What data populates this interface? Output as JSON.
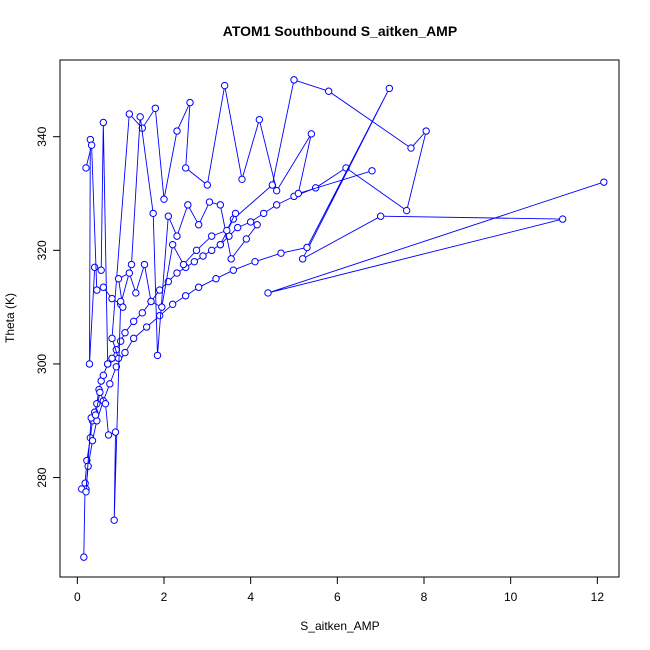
{
  "chart_data": {
    "type": "line",
    "title": "ATOM1 Southbound S_aitken_AMP",
    "xlabel": "S_aitken_AMP",
    "ylabel": "Theta (K)",
    "xlim": [
      -0.4,
      12.5
    ],
    "ylim": [
      262.5,
      353.5
    ],
    "xticks": [
      0,
      2,
      4,
      6,
      8,
      10,
      12
    ],
    "yticks": [
      280,
      300,
      320,
      340
    ],
    "grid": false,
    "legend": "none",
    "color": "#0000ff",
    "series": [
      {
        "x": [
          0.15,
          0.18,
          0.22,
          0.3,
          0.35,
          0.4,
          0.45,
          0.5,
          0.55,
          0.6,
          0.7,
          0.8,
          0.9,
          1.0,
          1.1,
          1.3,
          1.5,
          1.7,
          1.9,
          2.1,
          2.3,
          2.5,
          2.7,
          2.9,
          3.1,
          3.3,
          3.5,
          3.7,
          4.0,
          4.3,
          4.6,
          5.0,
          5.5,
          6.2,
          7.6,
          8.05,
          7.7,
          5.8,
          5.0,
          4.5,
          3.6,
          3.3
        ],
        "y": [
          266.0,
          279.0,
          283.0,
          287.0,
          290.0,
          291.5,
          293.0,
          295.5,
          297.0,
          298.0,
          300.0,
          301.0,
          302.5,
          304.0,
          305.5,
          307.5,
          309.0,
          311.0,
          313.0,
          314.5,
          316.0,
          317.0,
          318.0,
          319.0,
          320.0,
          321.0,
          322.5,
          324.0,
          325.0,
          326.5,
          328.0,
          329.5,
          331.0,
          334.5,
          327.0,
          341.0,
          338.0,
          348.0,
          350.0,
          331.5,
          325.5,
          321.0
        ]
      },
      {
        "x": [
          0.2,
          0.25,
          0.35,
          0.45,
          0.6,
          0.75,
          0.9,
          1.1,
          1.3,
          1.6,
          1.9,
          2.2,
          2.5,
          2.8,
          3.2,
          3.6,
          4.1,
          4.7,
          5.3,
          7.2,
          5.2,
          7.0,
          11.2,
          4.4,
          12.15
        ],
        "y": [
          278.0,
          282.0,
          286.5,
          290.0,
          293.5,
          296.5,
          299.5,
          302.0,
          304.5,
          306.5,
          308.5,
          310.5,
          312.0,
          313.5,
          315.0,
          316.5,
          318.0,
          319.5,
          320.5,
          348.5,
          318.5,
          326.0,
          325.5,
          312.5,
          332.0
        ]
      },
      {
        "x": [
          0.3,
          0.28,
          0.4,
          0.55,
          0.6,
          0.7,
          0.95,
          0.8,
          1.2,
          1.5,
          1.8,
          2.0,
          2.3,
          2.6,
          2.5,
          3.0,
          3.4,
          3.8,
          4.2,
          4.6,
          5.4,
          5.1,
          6.8
        ],
        "y": [
          339.5,
          300.0,
          317.0,
          316.5,
          342.5,
          300.0,
          301.0,
          304.5,
          344.0,
          341.5,
          345.0,
          329.0,
          341.0,
          346.0,
          334.5,
          331.5,
          349.0,
          332.5,
          343.0,
          330.5,
          340.5,
          330.0,
          334.0
        ]
      },
      {
        "x": [
          0.2,
          0.33,
          0.45,
          0.6,
          0.8,
          1.0,
          1.25,
          1.45,
          1.75,
          1.85,
          2.1,
          2.3,
          2.55,
          2.8,
          3.05,
          3.3,
          3.55,
          3.9,
          4.15
        ],
        "y": [
          334.5,
          338.5,
          313.0,
          313.5,
          311.5,
          310.5,
          317.5,
          343.5,
          326.5,
          301.5,
          326.0,
          322.5,
          328.0,
          324.5,
          328.5,
          328.0,
          318.5,
          322.0,
          324.5
        ]
      },
      {
        "x": [
          0.1,
          0.2,
          0.32,
          0.42,
          0.52,
          0.65,
          0.72,
          0.88,
          0.85,
          1.0,
          1.05,
          0.95,
          1.2,
          1.35,
          1.55,
          1.7,
          1.95,
          2.2,
          2.45,
          2.75,
          3.1,
          3.45,
          3.65
        ],
        "y": [
          278.0,
          277.5,
          290.5,
          291.0,
          295.0,
          293.0,
          287.5,
          288.0,
          272.5,
          311.0,
          310.0,
          315.0,
          316.0,
          312.5,
          317.5,
          311.0,
          310.0,
          321.0,
          317.5,
          320.0,
          322.5,
          323.5,
          326.5
        ]
      }
    ]
  }
}
